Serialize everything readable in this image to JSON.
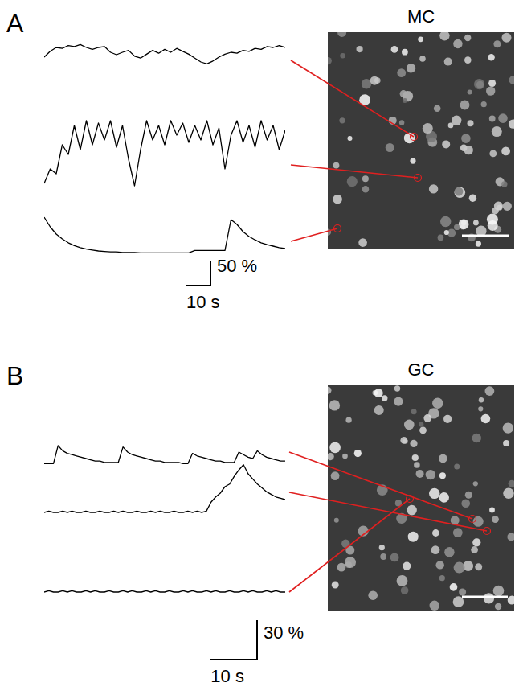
{
  "chart_data": [
    {
      "type": "line",
      "panel": "A",
      "title": "MC",
      "color": "#000000",
      "tick_labels": false,
      "xlim": [
        0,
        100
      ],
      "ylim": [
        -5,
        150
      ],
      "x_scale_bar": {
        "value": 10,
        "label": "10 s"
      },
      "y_scale_bar": {
        "value": 50,
        "label": "50 %"
      },
      "x": [
        0,
        2.5,
        5,
        7.5,
        10,
        12.5,
        15,
        17.5,
        20,
        22.5,
        25,
        27.5,
        30,
        32.5,
        35,
        37.5,
        40,
        42.5,
        45,
        47.5,
        50,
        52.5,
        55,
        57.5,
        60,
        62.5,
        65,
        67.5,
        70,
        72.5,
        75,
        77.5,
        80,
        82.5,
        85,
        87.5,
        90,
        92.5,
        95,
        97.5,
        100
      ],
      "series": [
        {
          "values": [
            50,
            62,
            70,
            68,
            74,
            72,
            76,
            70,
            66,
            70,
            72,
            60,
            55,
            60,
            64,
            52,
            48,
            56,
            64,
            58,
            66,
            60,
            68,
            62,
            56,
            48,
            40,
            36,
            42,
            50,
            56,
            60,
            58,
            64,
            62,
            68,
            66,
            72,
            70,
            74,
            70
          ]
        },
        {
          "values": [
            10,
            40,
            30,
            90,
            70,
            130,
            80,
            140,
            90,
            135,
            100,
            140,
            85,
            130,
            60,
            5,
            80,
            140,
            100,
            130,
            90,
            140,
            110,
            135,
            95,
            130,
            100,
            140,
            90,
            125,
            40,
            110,
            140,
            95,
            130,
            85,
            140,
            100,
            130,
            80,
            120
          ]
        },
        {
          "values": [
            75,
            55,
            40,
            30,
            22,
            16,
            12,
            9,
            7,
            5,
            4,
            3,
            3,
            2,
            2,
            2,
            1,
            1,
            1,
            1,
            1,
            1,
            1,
            1,
            1,
            6,
            6,
            6,
            6,
            6,
            6,
            70,
            60,
            45,
            35,
            28,
            22,
            18,
            15,
            12,
            10
          ]
        }
      ]
    },
    {
      "type": "line",
      "panel": "B",
      "title": "GC",
      "color": "#000000",
      "tick_labels": false,
      "xlim": [
        0,
        52
      ],
      "ylim": [
        -2,
        40
      ],
      "x_scale_bar": {
        "value": 10,
        "label": "10 s"
      },
      "y_scale_bar": {
        "value": 30,
        "label": "30 %"
      },
      "x": [
        0,
        1,
        2,
        3,
        4,
        5,
        6,
        7,
        8,
        9,
        10,
        11,
        12,
        13,
        14,
        15,
        16,
        17,
        18,
        19,
        20,
        21,
        22,
        23,
        24,
        25,
        26,
        27,
        28,
        29,
        30,
        31,
        32,
        33,
        34,
        35,
        36,
        37,
        38,
        39,
        40,
        41,
        42,
        43,
        44,
        45,
        46,
        47,
        48,
        49,
        50,
        51,
        52
      ],
      "series": [
        {
          "values": [
            1,
            1,
            1,
            15,
            11,
            9,
            8,
            7,
            6,
            5,
            4,
            3,
            3,
            2,
            2,
            2,
            2,
            14,
            10,
            8,
            7,
            6,
            5,
            4,
            3,
            3,
            2,
            2,
            2,
            2,
            1,
            1,
            9,
            7,
            6,
            5,
            4,
            3,
            3,
            2,
            2,
            2,
            10,
            8,
            6,
            5,
            11,
            8,
            6,
            5,
            4,
            3,
            3
          ]
        },
        {
          "values": [
            0,
            1,
            0,
            0,
            1,
            0,
            1,
            0,
            0,
            1,
            0,
            0,
            1,
            0,
            0,
            1,
            0,
            1,
            0,
            0,
            1,
            0,
            0,
            1,
            0,
            1,
            0,
            0,
            1,
            0,
            0,
            1,
            0,
            1,
            0,
            1,
            8,
            12,
            15,
            20,
            22,
            28,
            33,
            37,
            30,
            26,
            22,
            19,
            16,
            14,
            12,
            11,
            10
          ]
        },
        {
          "values": [
            0,
            1,
            0,
            0,
            1,
            0,
            1,
            0,
            0,
            1,
            0,
            1,
            0,
            0,
            1,
            0,
            0,
            1,
            0,
            1,
            0,
            0,
            1,
            0,
            1,
            0,
            0,
            1,
            0,
            0,
            1,
            0,
            1,
            0,
            0,
            1,
            0,
            1,
            0,
            0,
            1,
            0,
            0,
            1,
            0,
            1,
            0,
            0,
            1,
            0,
            1,
            0,
            0
          ]
        }
      ]
    }
  ]
}
